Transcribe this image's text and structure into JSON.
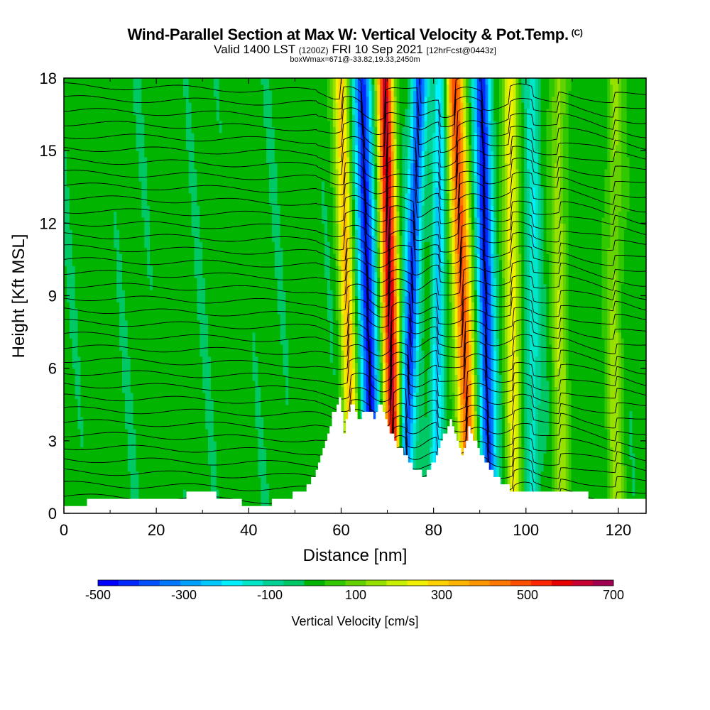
{
  "header": {
    "title": "Wind-Parallel Section at Max W: Vertical Velocity & Pot.Temp.",
    "copyright": "(C)",
    "valid_prefix": "Valid 1400 LST",
    "valid_utc": "(1200Z)",
    "valid_date": "FRI 10 Sep 2021",
    "forecast_note": "[12hrFcst@0443z]",
    "box_info": "boxWmax=671@-33.82,19.33,2450m"
  },
  "chart_data": {
    "type": "heatmap",
    "title": "Wind-Parallel Section at Max W: Vertical Velocity & Pot.Temp.",
    "xlabel": "Distance [nm]",
    "ylabel": "Height [Kft MSL]",
    "xlim": [
      0,
      126
    ],
    "ylim": [
      0,
      18
    ],
    "x_ticks": [
      0,
      20,
      40,
      60,
      80,
      100,
      120
    ],
    "x_tick_labels": [
      "0",
      "20",
      "40",
      "60",
      "80",
      "100",
      "120"
    ],
    "y_ticks": [
      0,
      3,
      6,
      9,
      12,
      15,
      18
    ],
    "y_tick_labels": [
      "0",
      "3",
      "6",
      "9",
      "12",
      "15",
      "18"
    ],
    "colorbar": {
      "label": "Vertical Velocity [cm/s]",
      "min": -500,
      "max": 700,
      "step": 50,
      "tick_values": [
        -500,
        -300,
        -100,
        100,
        300,
        500,
        700
      ],
      "tick_labels": [
        "-500",
        "-300",
        "-100",
        "100",
        "300",
        "500",
        "700"
      ],
      "colors": [
        "#0000ff",
        "#0028ff",
        "#0050ff",
        "#0078ff",
        "#00a0ff",
        "#00c8ff",
        "#00f0ff",
        "#00e6c8",
        "#00d296",
        "#00c864",
        "#00b400",
        "#32c800",
        "#64d200",
        "#96e100",
        "#c8f000",
        "#f0f000",
        "#ffd200",
        "#ffb400",
        "#ff9600",
        "#ff7800",
        "#ff5000",
        "#ff2800",
        "#e60000",
        "#c80032",
        "#a00050"
      ]
    },
    "terrain_kft": [
      [
        0,
        0.4
      ],
      [
        10,
        0.5
      ],
      [
        20,
        0.5
      ],
      [
        25,
        0.6
      ],
      [
        28,
        1.0
      ],
      [
        32,
        0.8
      ],
      [
        36,
        0.5
      ],
      [
        40,
        0.4
      ],
      [
        44,
        0.4
      ],
      [
        48,
        0.6
      ],
      [
        52,
        1.0
      ],
      [
        54,
        1.6
      ],
      [
        56,
        2.6
      ],
      [
        58,
        4.1
      ],
      [
        59.5,
        4.7
      ],
      [
        60.5,
        3.4
      ],
      [
        62,
        4.6
      ],
      [
        63.5,
        3.9
      ],
      [
        65,
        4.3
      ],
      [
        67,
        4.0
      ],
      [
        68.5,
        4.6
      ],
      [
        70,
        3.5
      ],
      [
        72,
        2.8
      ],
      [
        74,
        2.4
      ],
      [
        76,
        1.7
      ],
      [
        78,
        1.6
      ],
      [
        80,
        2.2
      ],
      [
        82,
        3.2
      ],
      [
        83.5,
        3.9
      ],
      [
        85,
        3.1
      ],
      [
        86,
        2.3
      ],
      [
        87.5,
        3.5
      ],
      [
        89,
        2.9
      ],
      [
        91,
        2.1
      ],
      [
        93,
        1.5
      ],
      [
        95,
        1.2
      ],
      [
        97,
        0.9
      ],
      [
        100,
        0.9
      ],
      [
        104,
        1.0
      ],
      [
        108,
        0.9
      ],
      [
        112,
        0.8
      ],
      [
        116,
        0.6
      ],
      [
        120,
        0.5
      ],
      [
        126,
        0.5
      ]
    ],
    "updraft_bands": [
      {
        "value_cms": 650,
        "x_top": 69.5,
        "x_bottom": 71.5,
        "width": 3.2
      },
      {
        "value_cms": 520,
        "x_top": 84.5,
        "x_bottom": 88.0,
        "width": 3.5
      },
      {
        "value_cms": 320,
        "x_top": 60.0,
        "x_bottom": 62.5,
        "width": 3.0
      },
      {
        "value_cms": 260,
        "x_top": 96.5,
        "x_bottom": 97.5,
        "width": 3.0
      },
      {
        "value_cms": 160,
        "x_top": 107.0,
        "x_bottom": 107.5,
        "width": 3.0
      },
      {
        "value_cms": 150,
        "x_top": 119.0,
        "x_bottom": 119.5,
        "width": 3.0
      }
    ],
    "downdraft_bands": [
      {
        "value_cms": -480,
        "x_top": 64.5,
        "x_bottom": 67.0,
        "width": 3.3
      },
      {
        "value_cms": -420,
        "x_top": 77.0,
        "x_bottom": 73.5,
        "width": 3.0
      },
      {
        "value_cms": -460,
        "x_top": 90.5,
        "x_bottom": 92.0,
        "width": 3.2
      },
      {
        "value_cms": -250,
        "x_top": 81.5,
        "x_bottom": 80.5,
        "width": 2.5
      },
      {
        "value_cms": -150,
        "x_top": 101.5,
        "x_bottom": 101.5,
        "width": 3.0
      }
    ],
    "theta_contour_count": 34
  }
}
